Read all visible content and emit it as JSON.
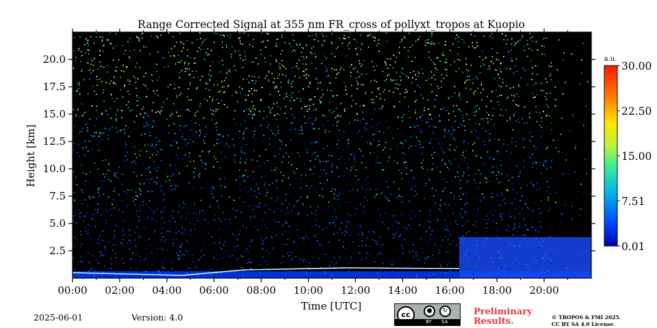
{
  "chart_data": {
    "type": "heatmap",
    "title": "Range Corrected Signal at 355 nm FR_cross of pollyxt_tropos at Kuopio",
    "xlabel": "Time [UTC]",
    "ylabel": "Height [km]",
    "xlim": [
      0,
      22
    ],
    "ylim": [
      0,
      22.5
    ],
    "x_ticks": [
      "00:00",
      "02:00",
      "04:00",
      "06:00",
      "08:00",
      "10:00",
      "12:00",
      "14:00",
      "16:00",
      "18:00",
      "20:00"
    ],
    "y_ticks": [
      "2.5",
      "5.0",
      "7.5",
      "10.0",
      "12.5",
      "15.0",
      "17.5",
      "20.0"
    ],
    "colorbar": {
      "label": "a.u.",
      "ticks": [
        "0.01",
        "7.51",
        "15.00",
        "22.50",
        "30.00"
      ],
      "range": [
        0.01,
        30.0
      ],
      "colormap": "jet"
    }
  },
  "footer": {
    "date": "2025-06-01",
    "version": "Version: 4.0",
    "preliminary": [
      "Preliminary",
      "Results."
    ],
    "copyright": [
      "© TROPOS & FMI 2025.",
      "CC BY SA 4.0 License."
    ],
    "license_badge": {
      "cc": "cc",
      "by": "BY",
      "sa": "SA"
    }
  },
  "colors": {
    "prelim": "#e8393a",
    "background": "#000000"
  }
}
